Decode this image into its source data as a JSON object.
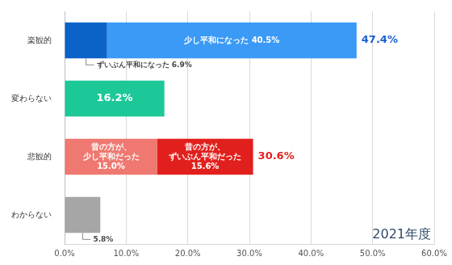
{
  "chart_data": {
    "type": "bar",
    "orientation": "horizontal",
    "stacked": true,
    "grid": true,
    "data_labels": true,
    "categories": [
      "楽観的",
      "変わらない",
      "悲観的",
      "わからない"
    ],
    "series": [
      {
        "name": "ずいぶん平和になった",
        "color": "#0b63c8",
        "values": [
          6.9,
          null,
          null,
          null
        ],
        "value_labels": [
          "6.9%",
          null,
          null,
          null
        ]
      },
      {
        "name": "少し平和になった",
        "color": "#3a9af6",
        "values": [
          40.5,
          null,
          null,
          null
        ],
        "value_labels": [
          "40.5%",
          null,
          null,
          null
        ]
      },
      {
        "color": "#1dc898",
        "values": [
          null,
          16.2,
          null,
          null
        ],
        "value_labels": [
          null,
          "16.2%",
          null,
          null
        ]
      },
      {
        "name": "昔の方が、少し平和だった",
        "color": "#ef7870",
        "values": [
          null,
          null,
          15.0,
          null
        ],
        "value_labels": [
          null,
          null,
          "15.0%",
          null
        ]
      },
      {
        "name": "昔の方が、ずいぶん平和だった",
        "color": "#e1201d",
        "values": [
          null,
          null,
          15.6,
          null
        ],
        "value_labels": [
          null,
          null,
          "15.6%",
          null
        ]
      },
      {
        "color": "#a6a6a6",
        "values": [
          null,
          null,
          null,
          5.8
        ],
        "value_labels": [
          null,
          null,
          null,
          "5.8%"
        ]
      }
    ],
    "annotations": [
      {
        "category": "楽観的",
        "value": 47.4,
        "label": "47.4%",
        "color": "#1a62d0"
      },
      {
        "category": "悲観的",
        "value": 30.6,
        "label": "30.6%",
        "color": "#e1201d"
      },
      {
        "text": "2021年度"
      }
    ],
    "xlim": [
      0,
      60
    ],
    "xticks": [
      {
        "value": 0,
        "label": "0.0%"
      },
      {
        "value": 10,
        "label": "10.0%"
      },
      {
        "value": 20,
        "label": "20.0%"
      },
      {
        "value": 30,
        "label": "30.0%"
      },
      {
        "value": 40,
        "label": "40.0%"
      },
      {
        "value": 50,
        "label": "50.0%"
      },
      {
        "value": 60,
        "label": "60.0%"
      }
    ]
  }
}
